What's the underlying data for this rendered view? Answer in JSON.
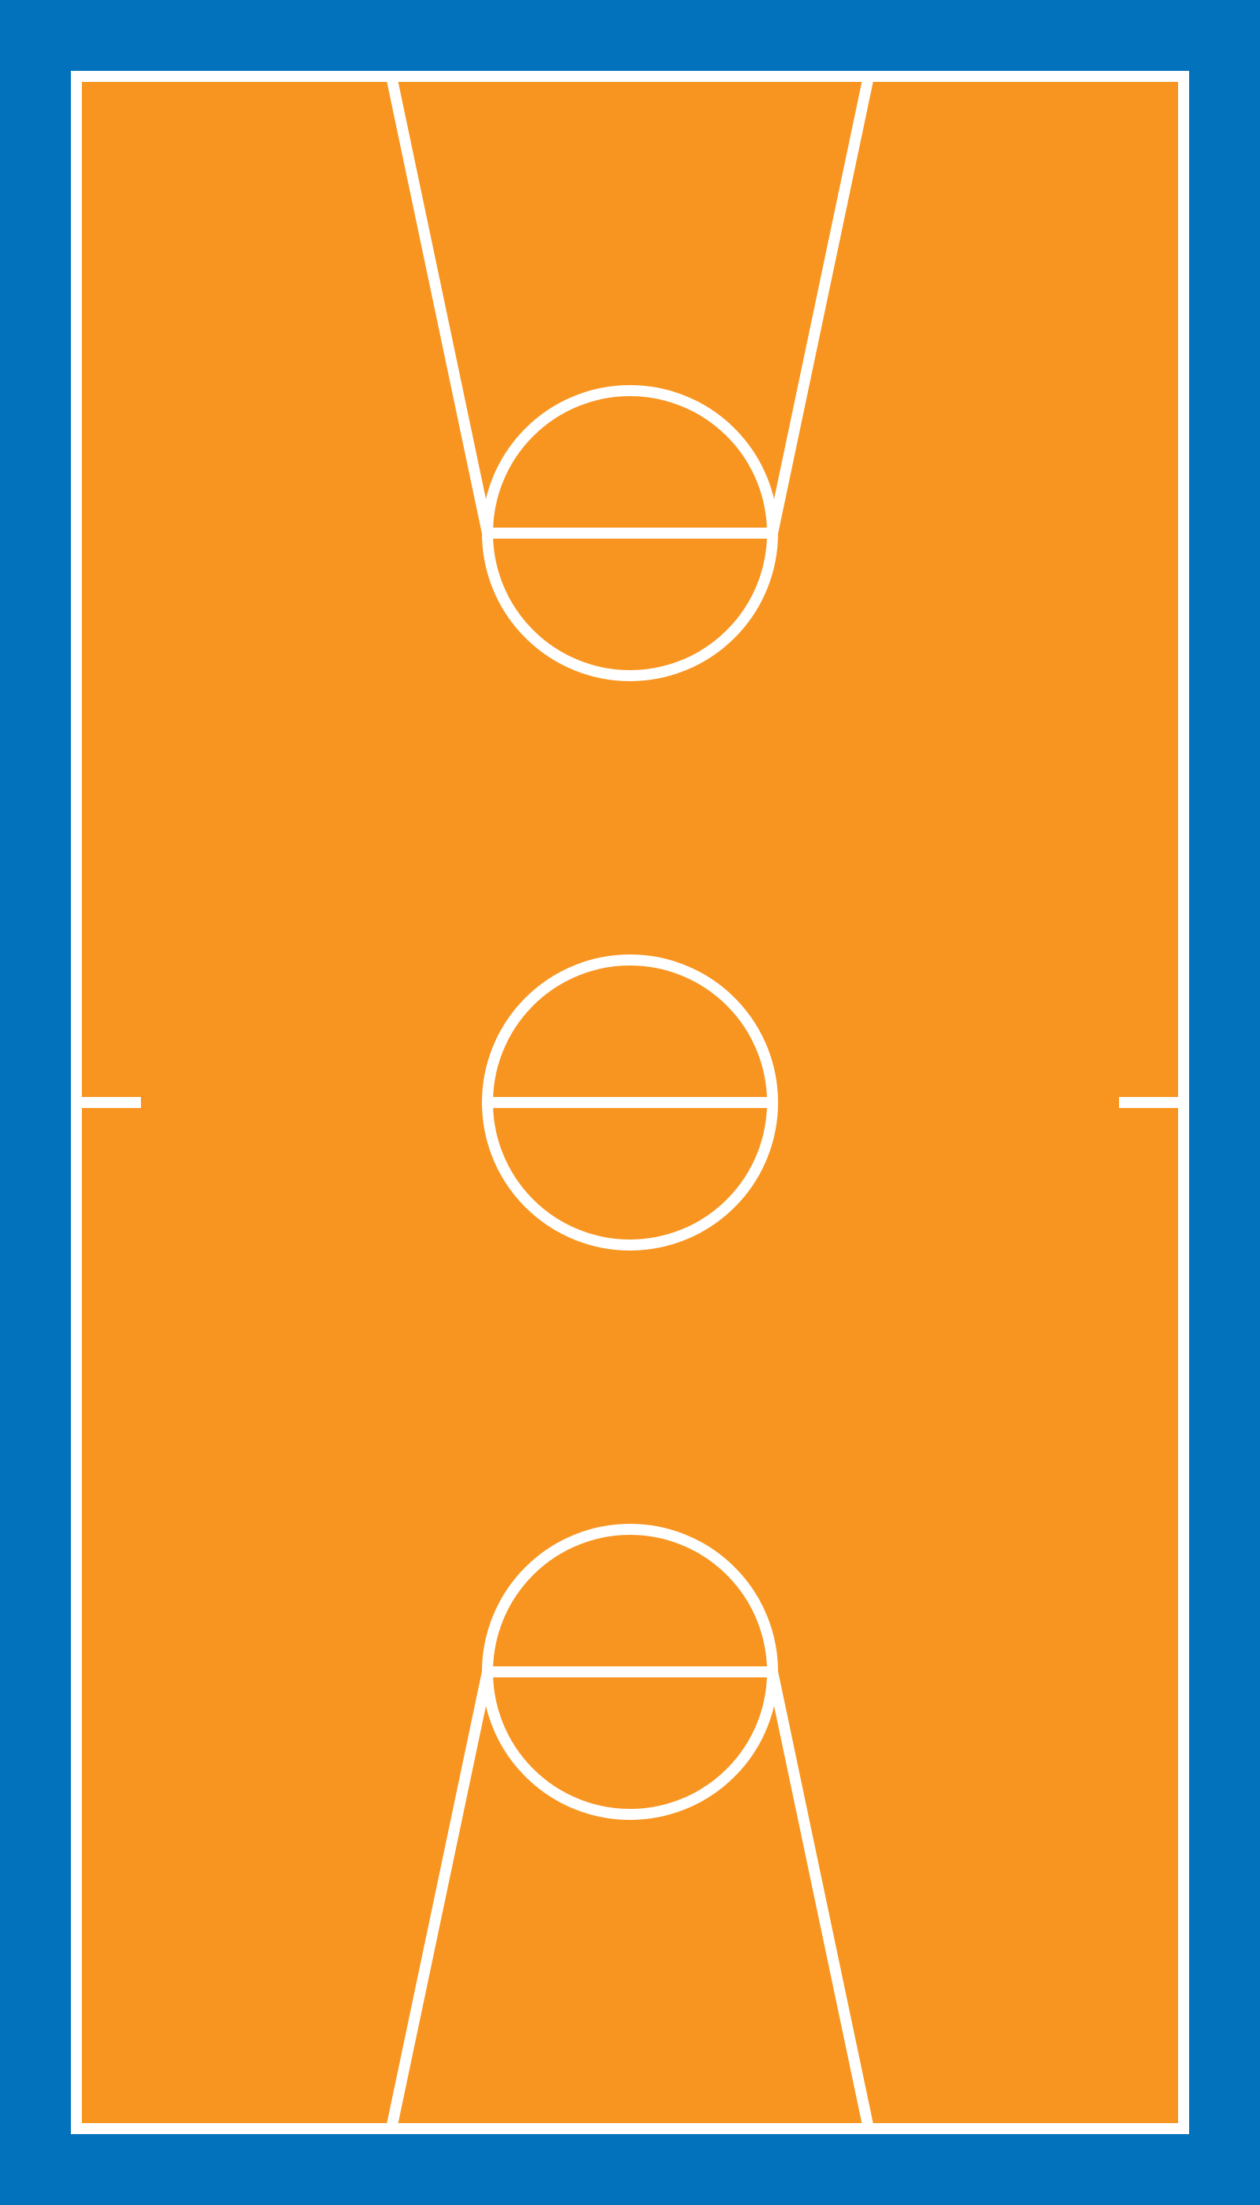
{
  "court": {
    "surround_color": "#0272bd",
    "floor_color": "#f89521",
    "line_color": "#ffffff",
    "markings": [
      "boundary",
      "center-line",
      "center-circle",
      "top-key",
      "top-free-throw-line",
      "top-free-throw-circle",
      "bottom-key",
      "bottom-free-throw-line",
      "bottom-free-throw-circle"
    ]
  }
}
